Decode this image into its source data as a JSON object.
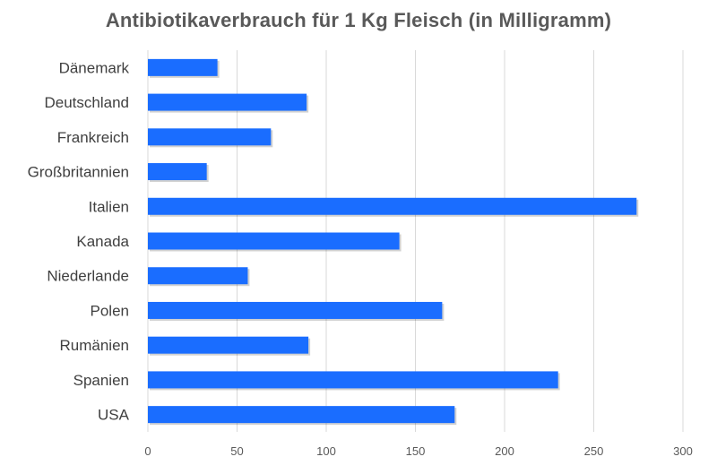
{
  "chart_data": {
    "type": "bar",
    "orientation": "horizontal",
    "title": "Antibiotikaverbrauch für 1 Kg Fleisch (in Milligramm)",
    "xlabel": "",
    "ylabel": "",
    "categories": [
      "Dänemark",
      "Deutschland",
      "Frankreich",
      "Großbritannien",
      "Italien",
      "Kanada",
      "Niederlande",
      "Polen",
      "Rumänien",
      "Spanien",
      "USA"
    ],
    "values": [
      39,
      89,
      69,
      33,
      274,
      141,
      56,
      165,
      90,
      230,
      172
    ],
    "xlim": [
      0,
      300
    ],
    "xticks": [
      "0",
      "50",
      "100",
      "150",
      "200",
      "250",
      "300"
    ],
    "grid": true,
    "bar_color": "#1a6dff",
    "grid_color": "#d9d9d9"
  }
}
